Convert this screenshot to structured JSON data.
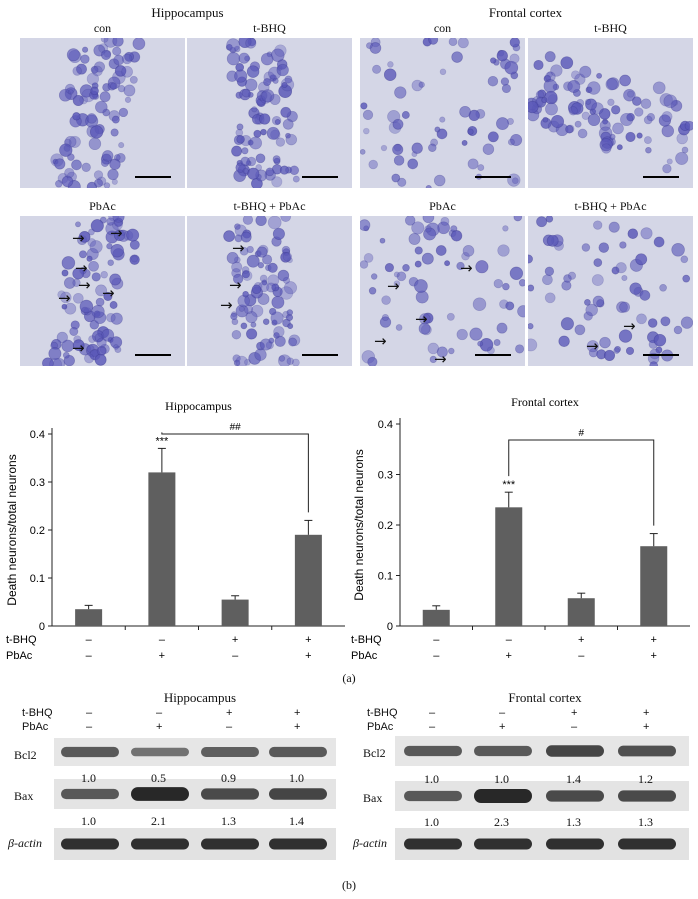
{
  "micrographs": {
    "hippocampus_title": "Hippocampus",
    "frontal_title": "Frontal cortex",
    "hippocampus_labels": [
      "con",
      "t-BHQ",
      "PbAc",
      "t-BHQ + PbAc"
    ],
    "frontal_labels": [
      "con",
      "t-BHQ",
      "PbAc",
      "t-BHQ + PbAc"
    ],
    "arrow_glyph": "→",
    "stain_color": "#5a58b8",
    "background_color": "#d4d6e6"
  },
  "chart_data": [
    {
      "type": "bar",
      "title": "Hippocampus",
      "ylabel": "Death neurons/total neurons",
      "categories": [
        "1",
        "2",
        "3",
        "4"
      ],
      "values": [
        0.035,
        0.32,
        0.055,
        0.19
      ],
      "errors": [
        0.008,
        0.05,
        0.008,
        0.03
      ],
      "ylim": [
        0,
        0.4
      ],
      "yticks": [
        "0",
        "0.1",
        "0.2",
        "0.3",
        "0.4"
      ],
      "significance": [
        {
          "bar": 2,
          "label": "***"
        }
      ],
      "bracket": {
        "from": 2,
        "to": 4,
        "label": "##"
      },
      "bar_color": "#5f5f5f"
    },
    {
      "type": "bar",
      "title": "Frontal cortex",
      "ylabel": "Death neurons/total neurons",
      "categories": [
        "1",
        "2",
        "3",
        "4"
      ],
      "values": [
        0.032,
        0.235,
        0.055,
        0.158
      ],
      "errors": [
        0.008,
        0.03,
        0.01,
        0.025
      ],
      "ylim": [
        0,
        0.4
      ],
      "yticks": [
        "0",
        "0.1",
        "0.2",
        "0.3",
        "0.4"
      ],
      "significance": [
        {
          "bar": 2,
          "label": "***"
        }
      ],
      "bracket": {
        "from": 2,
        "to": 4,
        "label": "#"
      },
      "bar_color": "#5f5f5f"
    }
  ],
  "treatments": {
    "tbhq_label": "t-BHQ",
    "pbac_label": "PbAc",
    "tbhq": [
      "–",
      "–",
      "+",
      "+"
    ],
    "pbac": [
      "–",
      "+",
      "–",
      "+"
    ]
  },
  "panel_a_label": "(a)",
  "panel_b_label": "(b)",
  "blots": {
    "hippocampus": {
      "title": "Hippocampus",
      "bcl2_label": "Bcl2",
      "bax_label": "Bax",
      "actin_label": "β-actin",
      "bcl2_values": [
        "1.0",
        "0.5",
        "0.9",
        "1.0"
      ],
      "bax_values": [
        "1.0",
        "2.1",
        "1.3",
        "1.4"
      ]
    },
    "frontal": {
      "title": "Frontal cortex",
      "bcl2_label": "Bcl2",
      "bax_label": "Bax",
      "actin_label": "β-actin",
      "bcl2_values": [
        "1.0",
        "1.0",
        "1.4",
        "1.2"
      ],
      "bax_values": [
        "1.0",
        "2.3",
        "1.3",
        "1.3"
      ]
    }
  }
}
